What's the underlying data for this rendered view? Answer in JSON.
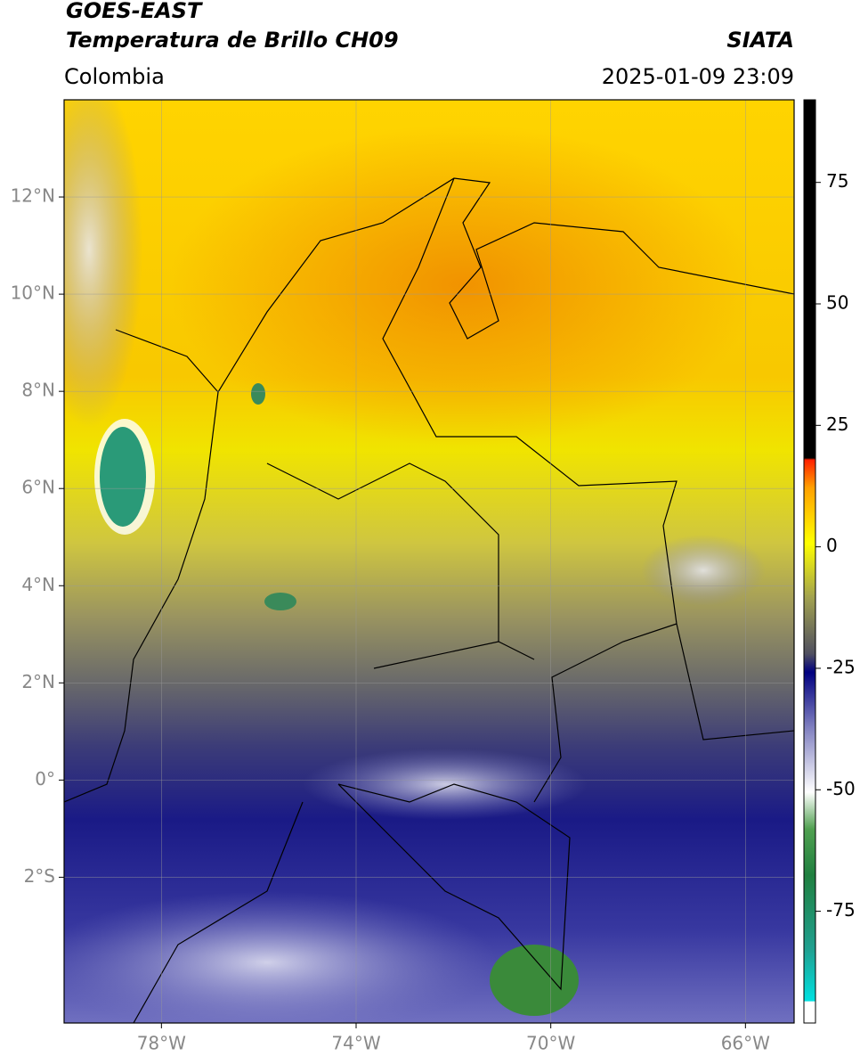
{
  "header": {
    "title": "GOES-EAST",
    "subtitle": "Temperatura de Brillo CH09",
    "source": "SIATA",
    "region": "Colombia",
    "datetime": "2025-01-09 23:09"
  },
  "map": {
    "xlim": [
      -80,
      -65
    ],
    "ylim": [
      -5,
      14
    ],
    "xticks": [
      {
        "value": -78,
        "label": "78°W"
      },
      {
        "value": -74,
        "label": "74°W"
      },
      {
        "value": -70,
        "label": "70°W"
      },
      {
        "value": -66,
        "label": "66°W"
      }
    ],
    "yticks": [
      {
        "value": -2,
        "label": "2°S"
      },
      {
        "value": 0,
        "label": "0°"
      },
      {
        "value": 2,
        "label": "2°N"
      },
      {
        "value": 4,
        "label": "4°N"
      },
      {
        "value": 6,
        "label": "6°N"
      },
      {
        "value": 8,
        "label": "8°N"
      },
      {
        "value": 10,
        "label": "10°N"
      },
      {
        "value": 12,
        "label": "12°N"
      }
    ],
    "grid": true
  },
  "colorbar": {
    "lim": [
      -98,
      92
    ],
    "ticks": [
      -75,
      -50,
      -25,
      0,
      25,
      50,
      75
    ]
  }
}
